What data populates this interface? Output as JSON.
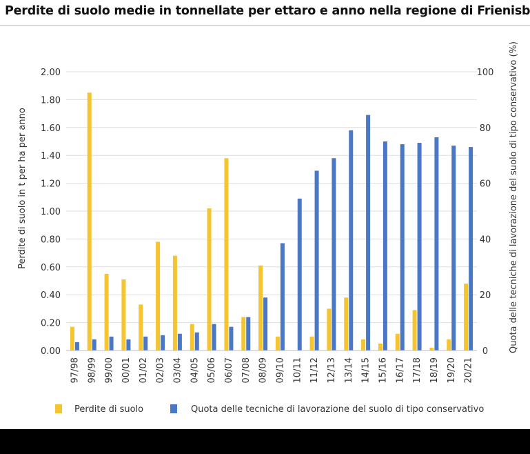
{
  "chart_data": {
    "type": "bar",
    "title": "Perdite di suolo medie in tonnellate per ettaro e anno nella regione di Frienisberg",
    "xlabel": "",
    "ylabel": "Perdite di suolo in t per ha per anno",
    "y2label": "Quota delle tecniche di lavorazione del suolo di tipo conservativo (%)",
    "ylim": [
      0,
      2.0
    ],
    "y2lim": [
      0,
      100
    ],
    "yticks": [
      "0.00",
      "0.20",
      "0.40",
      "0.60",
      "0.80",
      "1.00",
      "1.20",
      "1.40",
      "1.60",
      "1.80",
      "2.00"
    ],
    "y2ticks": [
      "0",
      "20",
      "40",
      "60",
      "80",
      "100"
    ],
    "grid": true,
    "legend_position": "bottom",
    "categories": [
      "97/98",
      "98/99",
      "99/00",
      "00/01",
      "01/02",
      "02/03",
      "03/04",
      "04/05",
      "05/06",
      "06/07",
      "07/08",
      "08/09",
      "09/10",
      "10/11",
      "11/12",
      "12/13",
      "13/14",
      "14/15",
      "15/16",
      "16/17",
      "17/18",
      "18/19",
      "19/20",
      "20/21"
    ],
    "series": [
      {
        "name": "Perdite di suolo",
        "axis": "left",
        "color": "#f5c431",
        "values": [
          0.17,
          1.85,
          0.55,
          0.51,
          0.33,
          0.78,
          0.68,
          0.19,
          1.02,
          1.38,
          0.24,
          0.61,
          0.1,
          0.0,
          0.1,
          0.3,
          0.38,
          0.08,
          0.05,
          0.12,
          0.29,
          0.02,
          0.08,
          0.48
        ]
      },
      {
        "name": "Quota delle tecniche di lavorazione del suolo di tipo conservativo",
        "axis": "right",
        "color": "#4b78c4",
        "values": [
          3,
          4,
          5,
          4,
          5,
          5.5,
          6,
          6.5,
          9.5,
          8.5,
          12,
          19,
          38.5,
          54.5,
          64.5,
          69,
          79,
          84.5,
          75,
          74,
          74.5,
          76.5,
          73.5,
          73
        ]
      }
    ]
  }
}
